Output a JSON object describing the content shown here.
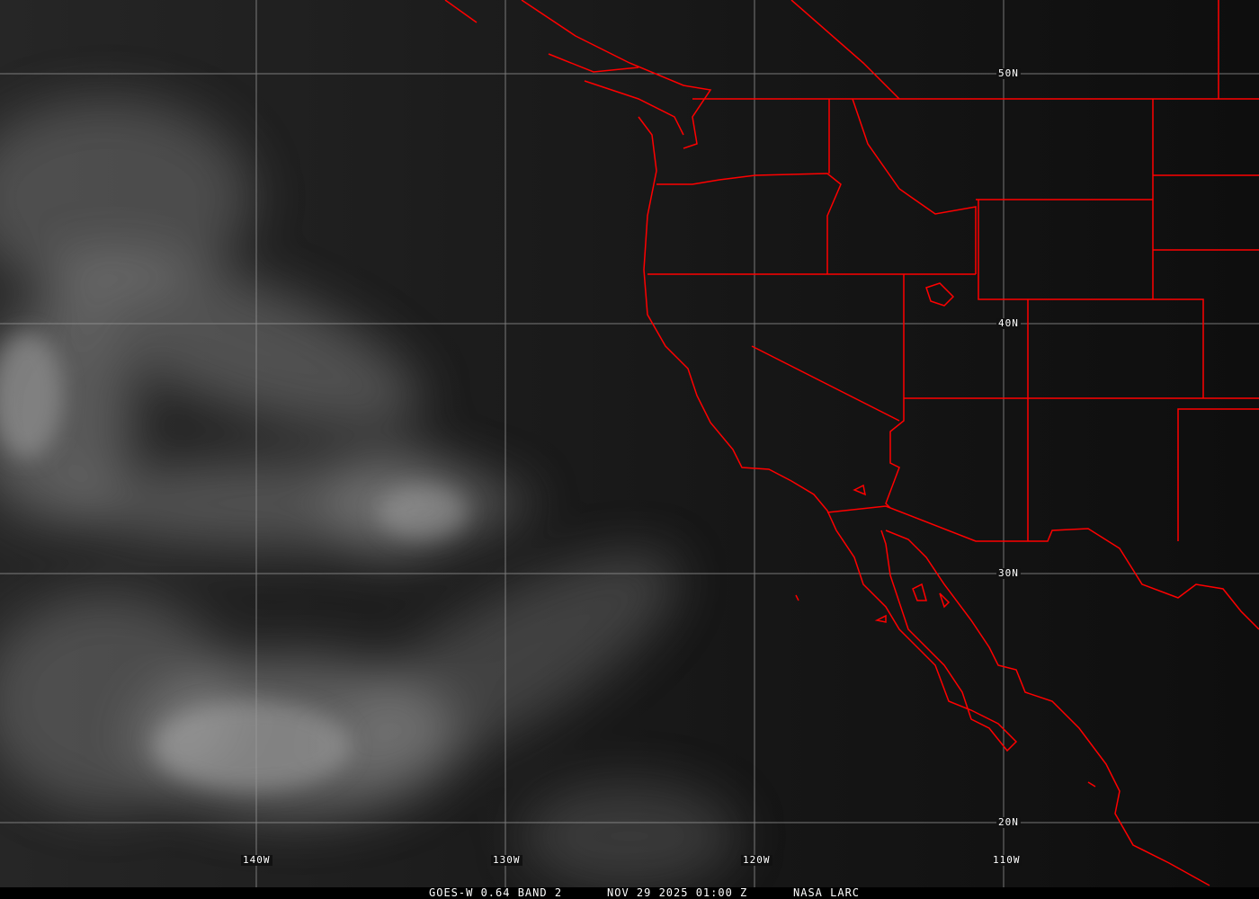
{
  "map": {
    "type": "satellite visible imagery",
    "colors": {
      "background": "#111111",
      "borders": "#ff0000",
      "grid": "#9a9a9a",
      "clouds": "#bdbdbd"
    },
    "lat_labels": [
      "50N",
      "40N",
      "30N",
      "20N"
    ],
    "lon_labels": [
      "140W",
      "130W",
      "120W",
      "110W"
    ]
  },
  "caption": {
    "product": "GOES-W 0.64 BAND 2",
    "datetime": "NOV 29 2025 01:00 Z",
    "credit": "NASA LARC"
  }
}
